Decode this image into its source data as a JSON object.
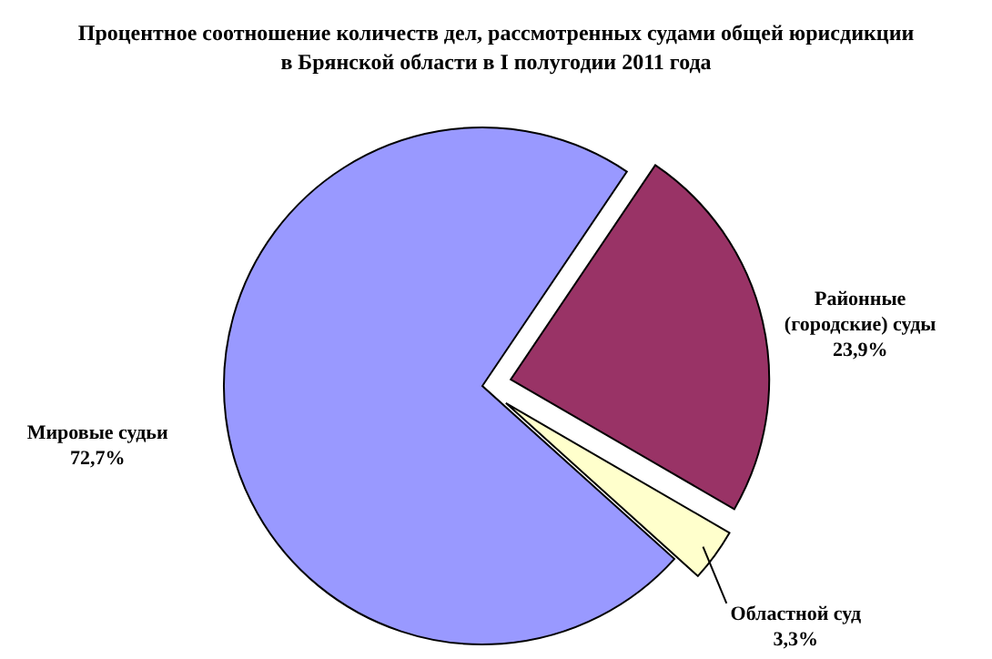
{
  "chart_data": {
    "type": "pie",
    "title": "Процентное соотношение количеств дел, рассмотренных судами общей юрисдикции в Брянской области в I полугодии 2011 года",
    "categories": [
      "Районные (городские) суды",
      "Областной суд",
      "Мировые судьи"
    ],
    "values": [
      23.9,
      3.3,
      72.7
    ],
    "value_labels": [
      "23,9%",
      "3,3%",
      "72,7%"
    ],
    "colors": [
      "#993366",
      "#ffffcc",
      "#9999ff"
    ]
  }
}
